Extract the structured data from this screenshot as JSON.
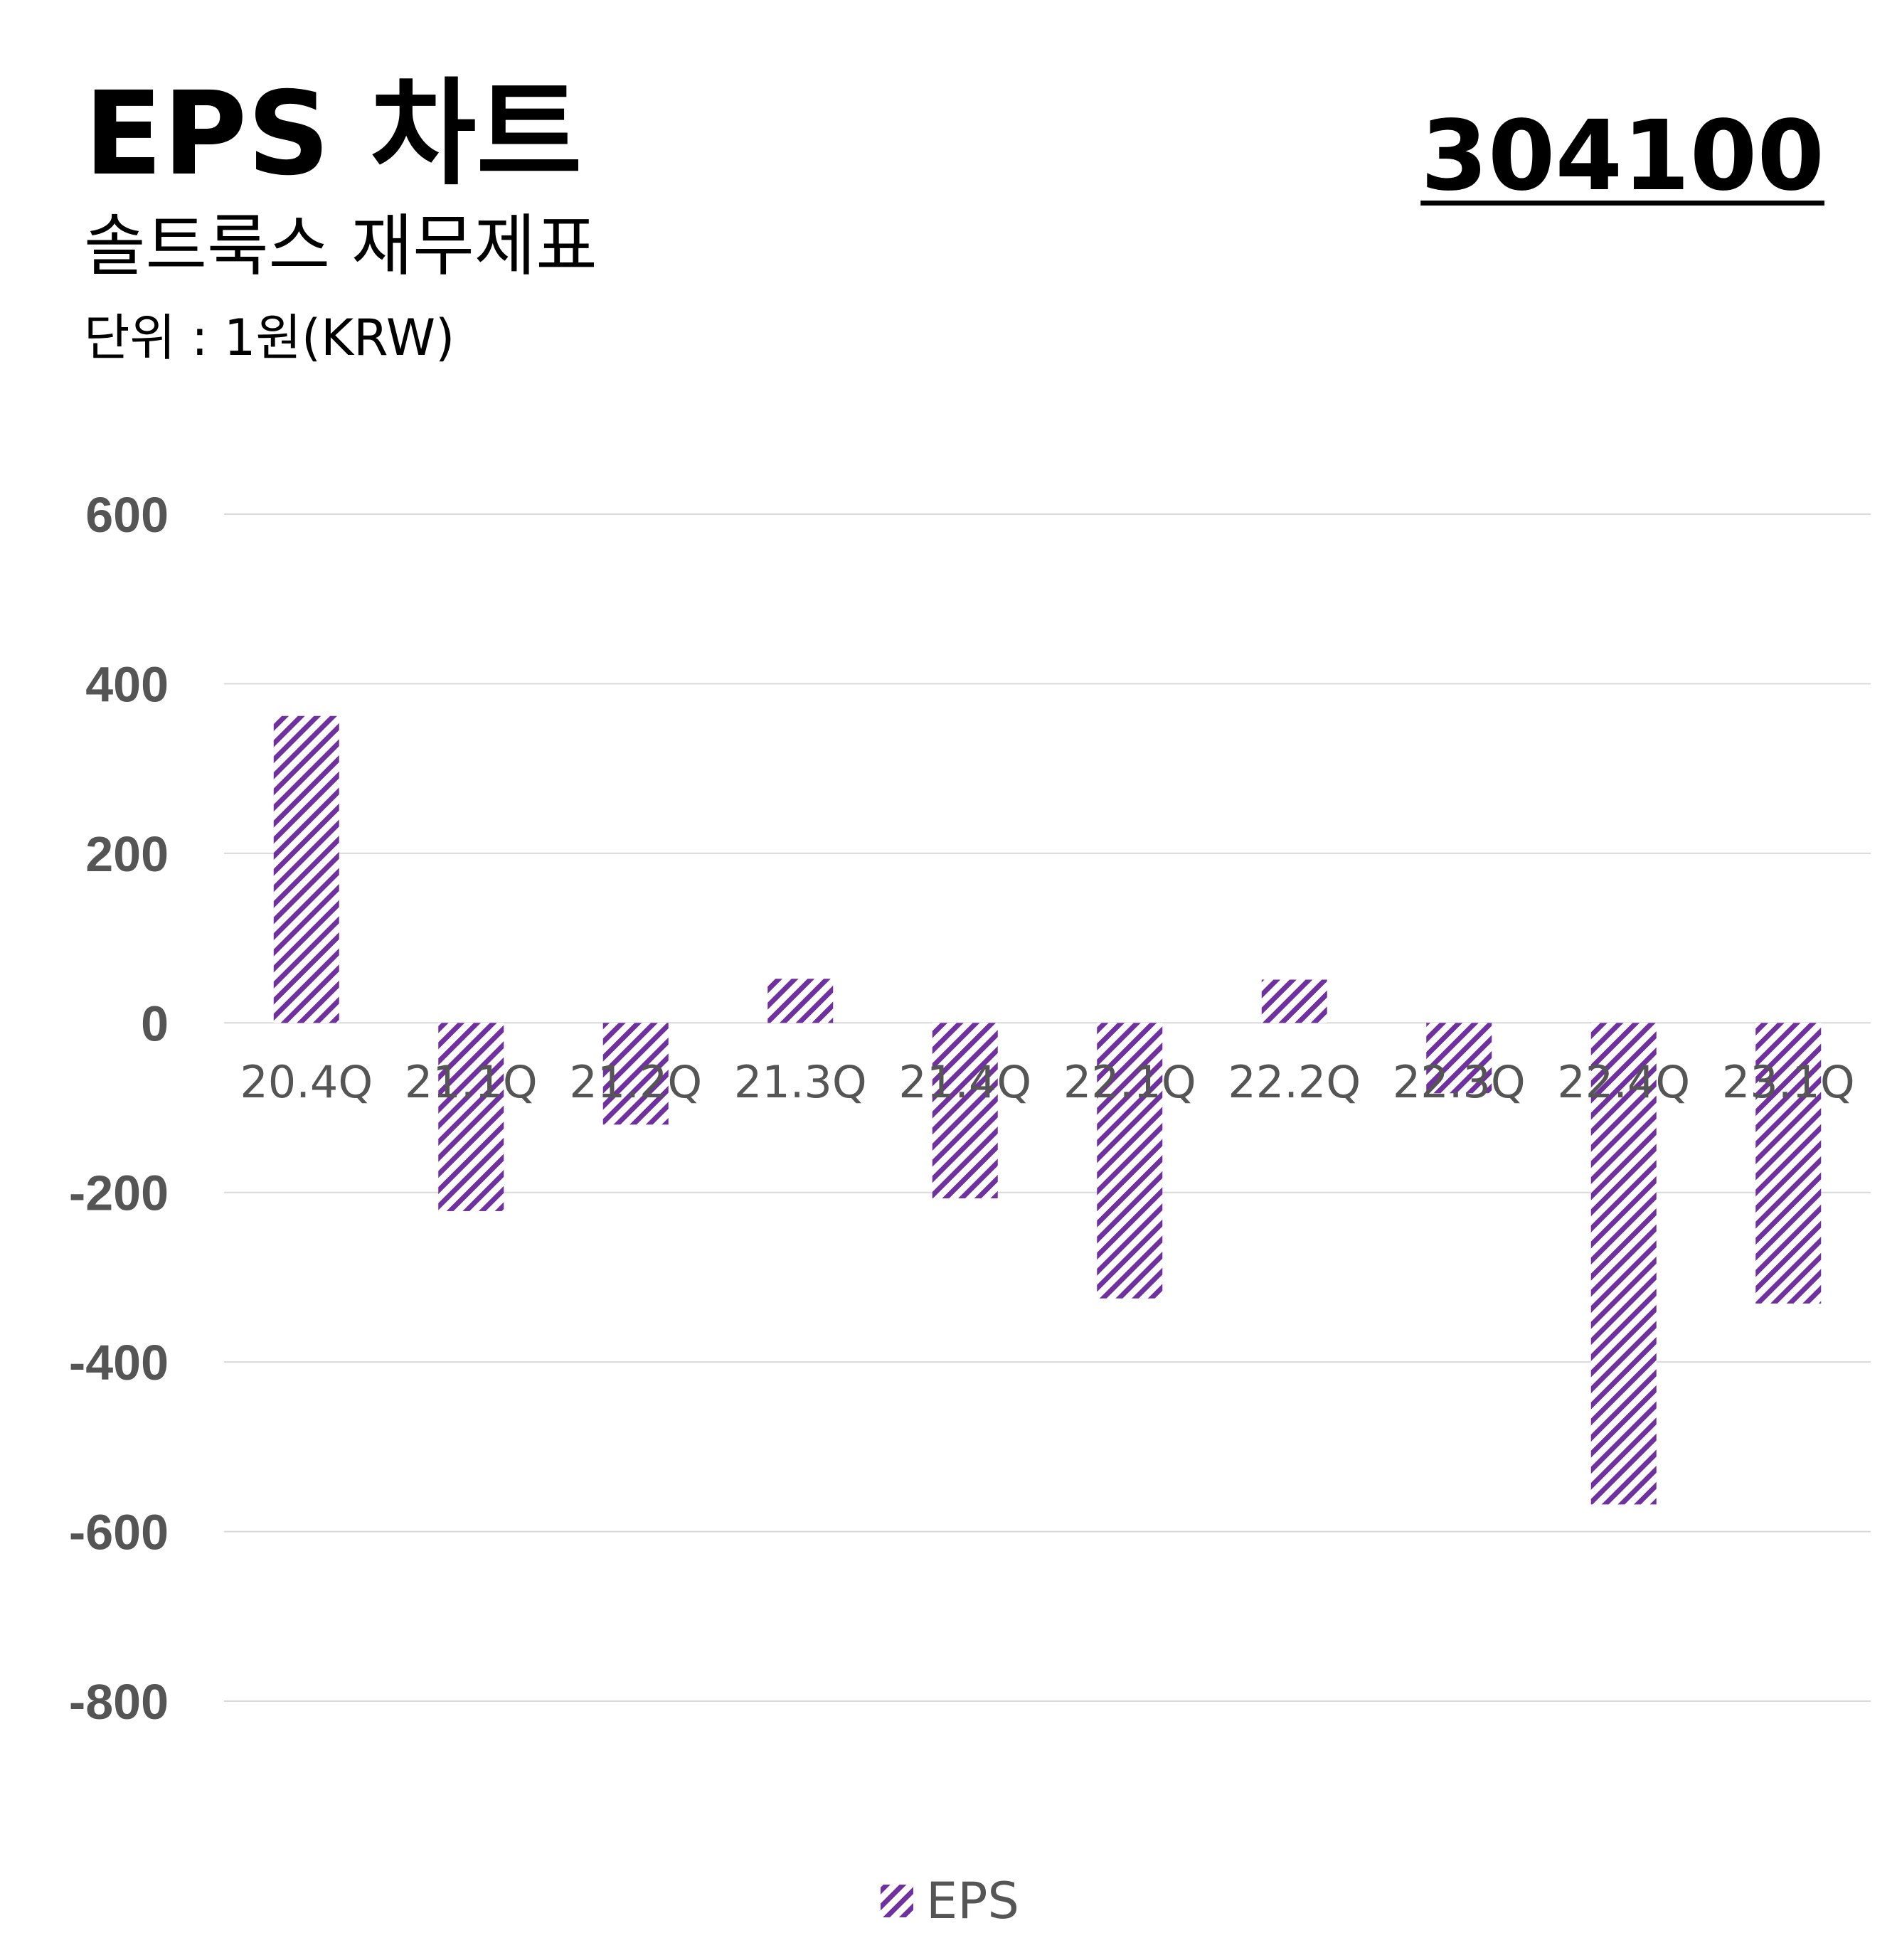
{
  "header": {
    "title": "EPS 차트",
    "subtitle": "솔트룩스 재무제표",
    "unit": "단위 : 1원(KRW)",
    "ticker": "304100"
  },
  "colors": {
    "bar": "#7030a0",
    "grid": "#d9d9d9",
    "axis_text": "#555555"
  },
  "chart_data": {
    "type": "bar",
    "title": "EPS 차트",
    "categories": [
      "20.4Q",
      "21.1Q",
      "21.2Q",
      "21.3Q",
      "21.4Q",
      "22.1Q",
      "22.2Q",
      "22.3Q",
      "22.4Q",
      "23.1Q"
    ],
    "series": [
      {
        "name": "EPS",
        "values": [
          362,
          -222,
          -120,
          52,
          -207,
          -325,
          51,
          -83,
          -568,
          -331
        ],
        "pattern": "diagonal-stripes"
      }
    ],
    "yticks": [
      "600",
      "400",
      "200",
      "0",
      "-200",
      "-400",
      "-600",
      "-800"
    ],
    "ylim": [
      -800,
      600
    ],
    "grid": true,
    "legend_position": "bottom-center"
  }
}
